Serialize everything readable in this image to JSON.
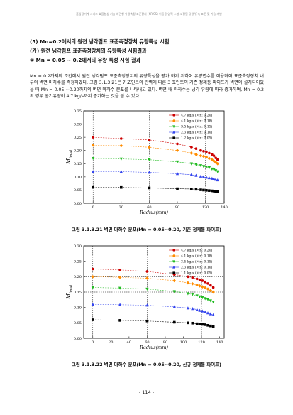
{
  "header": "흡입정기계 시리즈 효율향상 기술 배관형 유량측정 표준장치 (KRISS) 이동용 압력 소형 고정밀 유량/유속 표준 및 기술 개발",
  "section": {
    "title": "(5) Mn=0.2에서의 원전 냉각펌프 표준측정장치 유량특성 시험",
    "subtitle": "(가) 원전 냉각펌프 표준측정장치의 유량특성 시험결과",
    "item": "① Mn = 0.05 ~ 0.2에서의 유량 특성 시험 결과",
    "paragraph": "Mn = 0.2까지의 조건에서 원전 냉각펌프 표준측정장치의 유량특성을 평가 하기 위하여 유량변수를 이용하여 표준측정장치 내부의 벽면 마하수를 측정하였다. 그림 3.1.3.21은 7 포인트의 관벽에 따른 3 포인트의 기존 정제통 파이프가 벽면에 설치되어있을 때 Mn = 0.05 ~0.20까지의 벽면 마하수 분포를 나타내고 있다. 벽면 내 마하수는 냉각 유량에 따라 증가하며, Mn = 0.2의 경우 공기유량이 4.7 kg/s까지 증가하는 것을 볼 수 있다."
  },
  "figures": [
    {
      "caption": "그림 3.1.3.21 벽면 마하수 분포(Mn = 0.05~0.20, 기존 정제통 파이프)",
      "chart_data": {
        "type": "scatter",
        "xlabel": "Radius(mm)",
        "ylabel": "M_(local)",
        "xlim": [
          -10,
          140
        ],
        "ylim": [
          0.0,
          0.35
        ],
        "xticks": [
          0,
          30,
          60,
          90,
          120,
          140
        ],
        "yticks": [
          0.0,
          0.05,
          0.1,
          0.15,
          0.2,
          0.25,
          0.3,
          0.35
        ],
        "vlines": [
          0,
          60,
          120
        ],
        "hlines": [
          0.05
        ],
        "legend_position": "top-right",
        "series": [
          {
            "name": "4.7 kg/s (Mn: 0.20)",
            "color": "#cc0000",
            "marker": "circle",
            "x": [
              0,
              30,
              60,
              90,
              105,
              110,
              115,
              118,
              121,
              124,
              127,
              129,
              131,
              133
            ],
            "y": [
              0.25,
              0.245,
              0.24,
              0.225,
              0.213,
              0.207,
              0.2,
              0.197,
              0.195,
              0.19,
              0.185,
              0.18,
              0.172,
              0.165
            ]
          },
          {
            "name": "4.1 kg/s (Mn: 0.18)",
            "color": "#ff8c00",
            "marker": "diamond",
            "x": [
              0,
              30,
              60,
              90,
              105,
              110,
              115,
              118,
              121,
              124,
              127,
              129,
              131,
              133
            ],
            "y": [
              0.22,
              0.218,
              0.212,
              0.2,
              0.19,
              0.185,
              0.18,
              0.178,
              0.175,
              0.17,
              0.165,
              0.16,
              0.155,
              0.15
            ]
          },
          {
            "name": "3.5 kg/s (Mn: 0.15)",
            "color": "#22bb22",
            "marker": "triangle-down",
            "x": [
              0,
              30,
              60,
              90,
              105,
              110,
              115,
              118,
              121,
              124,
              127,
              129,
              131,
              133
            ],
            "y": [
              0.17,
              0.168,
              0.165,
              0.157,
              0.15,
              0.147,
              0.143,
              0.14,
              0.138,
              0.135,
              0.13,
              0.128,
              0.124,
              0.12
            ]
          },
          {
            "name": "2.3 kg/s (Mn: 0.10)",
            "color": "#3344ee",
            "marker": "triangle-up",
            "x": [
              0,
              30,
              60,
              90,
              105,
              110,
              115,
              118,
              121,
              124,
              127,
              129,
              131,
              133
            ],
            "y": [
              0.12,
              0.12,
              0.117,
              0.112,
              0.108,
              0.105,
              0.102,
              0.1,
              0.098,
              0.096,
              0.094,
              0.092,
              0.09,
              0.088
            ]
          },
          {
            "name": "1.2 kg/s (Mn: 0.05)",
            "color": "#000000",
            "marker": "square",
            "x": [
              0,
              30,
              60,
              90,
              105,
              110,
              115,
              118,
              121,
              124,
              127,
              129,
              131,
              133
            ],
            "y": [
              0.06,
              0.06,
              0.058,
              0.055,
              0.054,
              0.053,
              0.051,
              0.05,
              0.049,
              0.048,
              0.047,
              0.046,
              0.045,
              0.044
            ]
          }
        ]
      }
    },
    {
      "caption": "그림 3.1.3.22 벽면 마하수 분포(Mn = 0.05~0.20, 신규 정제통 파이프)",
      "chart_data": {
        "type": "scatter",
        "xlabel": "Radius(mm)",
        "ylabel": "M_(local)",
        "xlim": [
          -10,
          145
        ],
        "ylim": [
          0.0,
          0.3
        ],
        "xticks": [
          0,
          20,
          40,
          60,
          80,
          100,
          120,
          140
        ],
        "yticks": [
          0.0,
          0.05,
          0.1,
          0.15,
          0.2,
          0.25,
          0.3
        ],
        "vlines": [
          0,
          60,
          120
        ],
        "hlines": [
          0.15,
          0.2
        ],
        "legend_position": "top-right",
        "series": [
          {
            "name": "4.7 kg/s (Mn: 0.20)",
            "color": "#cc0000",
            "marker": "circle",
            "x": [
              0,
              30,
              60,
              90,
              105,
              110,
              115,
              118,
              121,
              124,
              127,
              130,
              133
            ],
            "y": [
              0.225,
              0.222,
              0.217,
              0.207,
              0.2,
              0.197,
              0.193,
              0.19,
              0.187,
              0.183,
              0.178,
              0.172,
              0.165
            ]
          },
          {
            "name": "4.1 kg/s (Mn: 0.18)",
            "color": "#ff8c00",
            "marker": "diamond",
            "x": [
              0,
              30,
              60,
              90,
              105,
              110,
              115,
              118,
              121,
              124,
              127,
              130,
              133
            ],
            "y": [
              0.2,
              0.198,
              0.195,
              0.187,
              0.18,
              0.177,
              0.173,
              0.17,
              0.167,
              0.164,
              0.16,
              0.155,
              0.15
            ]
          },
          {
            "name": "3.5 kg/s (Mn: 0.15)",
            "color": "#22bb22",
            "marker": "triangle-down",
            "x": [
              0,
              30,
              60,
              90,
              105,
              110,
              115,
              118,
              121,
              124,
              127,
              130,
              133
            ],
            "y": [
              0.165,
              0.163,
              0.16,
              0.152,
              0.145,
              0.142,
              0.138,
              0.135,
              0.132,
              0.129,
              0.126,
              0.122,
              0.118
            ]
          },
          {
            "name": "2.3 kg/s (Mn: 0.10)",
            "color": "#3344ee",
            "marker": "triangle-up",
            "x": [
              0,
              30,
              60,
              90,
              105,
              110,
              115,
              118,
              121,
              124,
              127,
              130,
              133
            ],
            "y": [
              0.11,
              0.109,
              0.107,
              0.102,
              0.098,
              0.096,
              0.093,
              0.09,
              0.088,
              0.085,
              0.082,
              0.079,
              0.076
            ]
          },
          {
            "name": "1.1 kg/s (Mn: 0.05)",
            "color": "#000000",
            "marker": "square",
            "x": [
              0,
              30,
              60,
              90,
              105,
              110,
              115,
              118,
              121,
              124,
              127,
              130,
              133
            ],
            "y": [
              0.06,
              0.058,
              0.056,
              0.052,
              0.05,
              0.049,
              0.047,
              0.046,
              0.045,
              0.044,
              0.042,
              0.04,
              0.038
            ]
          }
        ]
      }
    }
  ],
  "page_number": "- 114 -"
}
